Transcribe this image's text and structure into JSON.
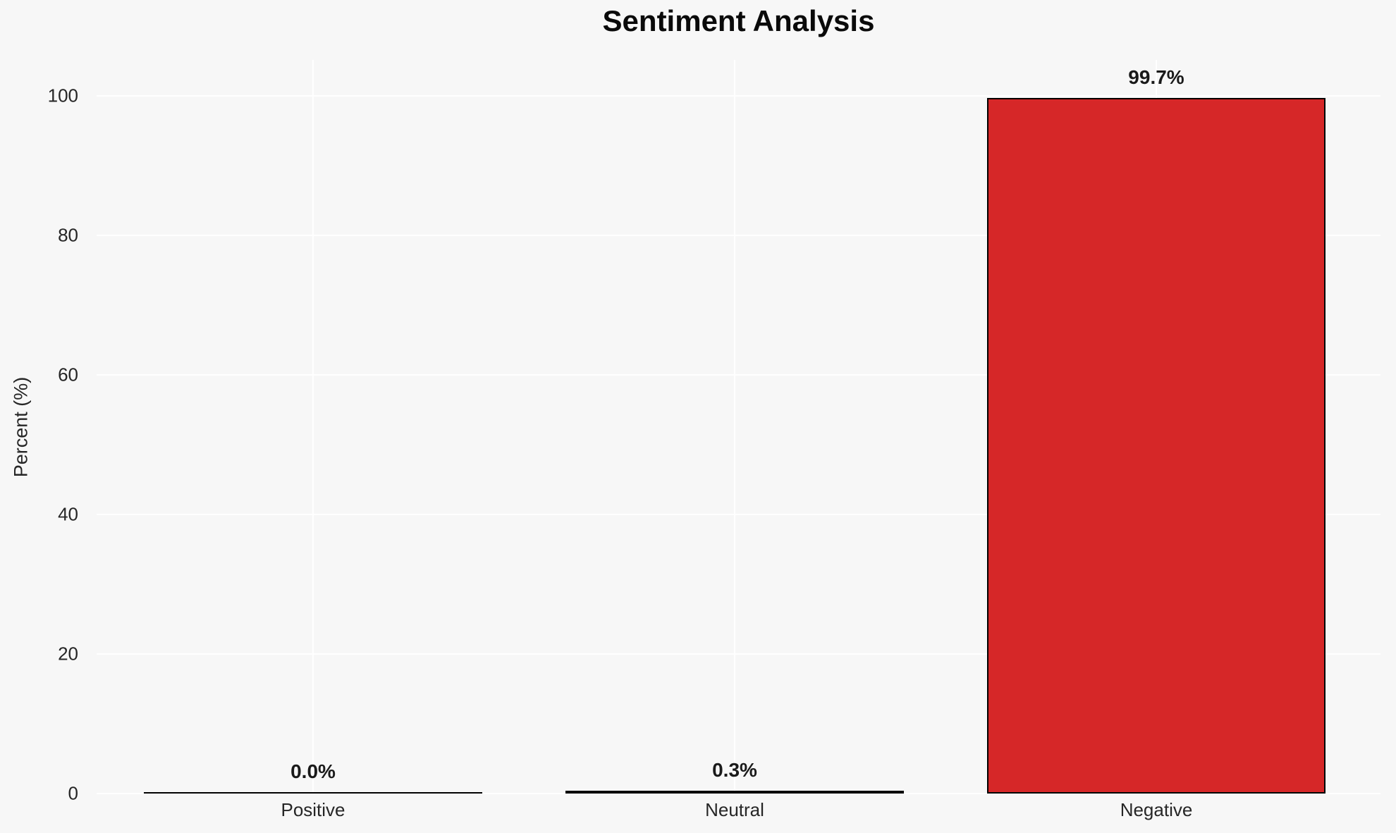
{
  "chart_data": {
    "type": "bar",
    "title": "Sentiment Analysis",
    "xlabel": "",
    "ylabel": "Percent (%)",
    "categories": [
      "Positive",
      "Neutral",
      "Negative"
    ],
    "values": [
      0.0,
      0.3,
      99.7
    ],
    "value_labels": [
      "0.0%",
      "0.3%",
      "99.7%"
    ],
    "yticks": [
      0,
      20,
      40,
      60,
      80,
      100
    ],
    "ylim": [
      0,
      105
    ],
    "grid": "on",
    "legend": "none",
    "colors": {
      "background": "#f7f7f7",
      "gridline": "#ffffff",
      "bar_fill": "#d62728",
      "bar_edge": "#000000",
      "title_text": "#0a0a0a",
      "tick_text": "#262626",
      "value_label_text": "#1a1a1a"
    }
  }
}
